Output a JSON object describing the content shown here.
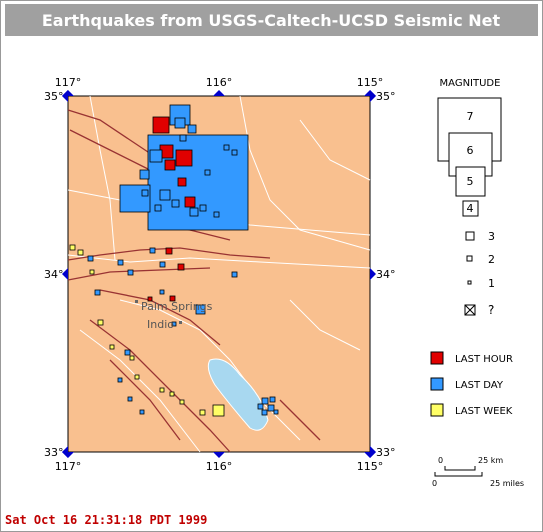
{
  "header": {
    "title": "Earthquakes from USGS-Caltech-UCSD Seismic Net"
  },
  "map": {
    "top_labels": [
      "117°",
      "116°",
      "115°"
    ],
    "bottom_labels": [
      "117°",
      "116°",
      "115°"
    ],
    "left_labels": [
      "35°",
      "34°",
      "33°"
    ],
    "right_labels": [
      "35°",
      "34°",
      "33°"
    ],
    "cities": [
      "Palm Springs",
      "Indio"
    ]
  },
  "legend": {
    "magnitude_title": "MAGNITUDE",
    "magnitudes": [
      "7",
      "6",
      "5",
      "4",
      "3",
      "2",
      "1",
      "?"
    ],
    "periods": [
      "LAST HOUR",
      "LAST DAY",
      "LAST WEEK"
    ]
  },
  "scale": {
    "km_zero": "0",
    "km_label": "25 km",
    "mi_zero": "0",
    "mi_label": "25 miles"
  },
  "footer": {
    "timestamp": "Sat Oct 16 21:31:18 PDT 1999"
  }
}
